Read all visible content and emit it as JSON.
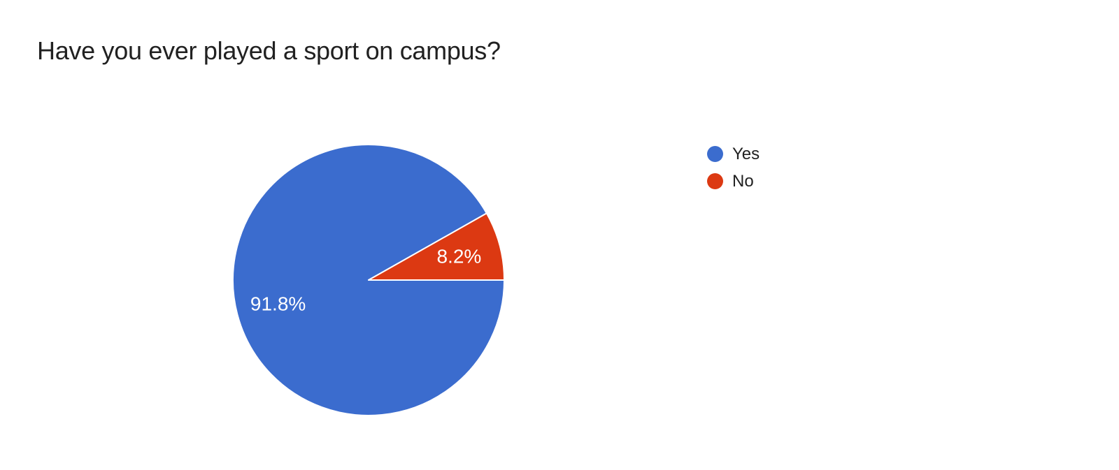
{
  "title": {
    "text": "Have you ever played a sport on campus?",
    "color": "#212121"
  },
  "chart_data": {
    "type": "pie",
    "title": "Have you ever played a sport on campus?",
    "categories": [
      "Yes",
      "No"
    ],
    "values": [
      91.8,
      8.2
    ],
    "slice_labels": [
      "91.8%",
      "8.2%"
    ],
    "colors": [
      "#3B6CCE",
      "#DC3912"
    ],
    "start_angle_deg": 0,
    "direction": "clockwise",
    "slice_stroke_color": "#ffffff",
    "slice_label_color": "#ffffff",
    "legend_position": "right",
    "background": "#ffffff"
  },
  "legend": {
    "items": [
      {
        "label": "Yes",
        "color": "#3B6CCE"
      },
      {
        "label": "No",
        "color": "#DC3912"
      }
    ]
  }
}
